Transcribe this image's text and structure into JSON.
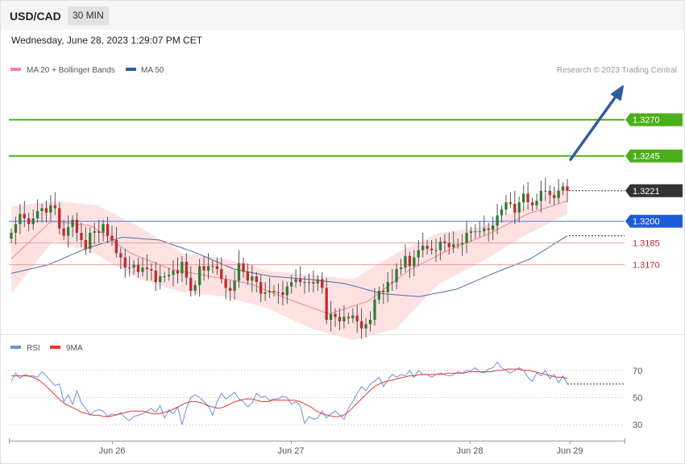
{
  "header": {
    "symbol": "USD/CAD",
    "timeframe": "30 MIN"
  },
  "timestamp": "Wednesday, June 28, 2023 1:29:07 PM CET",
  "credit": "Research © 2023 Trading Central",
  "colors": {
    "bull": "#2e7d32",
    "bear": "#c62828",
    "band": "#fdd8d8",
    "ma20": "#ef8a8a",
    "ma50": "#4a6fa5",
    "resistance": "#4caf1a",
    "pivot": "#1e5bd8",
    "support": "#ef9a9a",
    "last": "#333333",
    "arrow": "#2f5d9e",
    "rsi": "#6f8fe0",
    "rsi_ma": "#e53935"
  },
  "chart_data": [
    {
      "type": "candlestick",
      "legend": [
        {
          "name": "MA 20 + Bollinger Bands",
          "color": "#ef8a8a"
        },
        {
          "name": "MA 50",
          "color": "#2f5d9e"
        }
      ],
      "x_labels": [
        "Jun 26",
        "Jun 27",
        "Jun 28",
        "Jun 29"
      ],
      "ylim": [
        1.3122,
        1.3297
      ],
      "levels": [
        {
          "value": 1.327,
          "label": "1.3270",
          "kind": "resistance"
        },
        {
          "value": 1.3245,
          "label": "1.3245",
          "kind": "resistance"
        },
        {
          "value": 1.3221,
          "label": "1.3221",
          "kind": "last"
        },
        {
          "value": 1.32,
          "label": "1.3200",
          "kind": "pivot"
        },
        {
          "value": 1.3185,
          "label": "1.3185",
          "kind": "support"
        },
        {
          "value": 1.317,
          "label": "1.3170",
          "kind": "support"
        }
      ],
      "close": [
        1.3192,
        1.3198,
        1.3205,
        1.3202,
        1.3198,
        1.3202,
        1.3207,
        1.3209,
        1.3206,
        1.3211,
        1.3209,
        1.3195,
        1.319,
        1.3196,
        1.3201,
        1.3192,
        1.3187,
        1.3181,
        1.3192,
        1.3193,
        1.3192,
        1.3198,
        1.319,
        1.3187,
        1.3178,
        1.3175,
        1.3168,
        1.3168,
        1.317,
        1.3165,
        1.3168,
        1.3167,
        1.3166,
        1.3158,
        1.3162,
        1.3162,
        1.3163,
        1.3166,
        1.3164,
        1.3172,
        1.3161,
        1.3152,
        1.3156,
        1.3169,
        1.3166,
        1.3169,
        1.3169,
        1.3167,
        1.316,
        1.3154,
        1.3152,
        1.3159,
        1.3171,
        1.3165,
        1.3159,
        1.3162,
        1.3158,
        1.315,
        1.3151,
        1.3152,
        1.3151,
        1.3151,
        1.3149,
        1.3155,
        1.3158,
        1.316,
        1.3158,
        1.3158,
        1.3158,
        1.3157,
        1.316,
        1.3154,
        1.3132,
        1.3136,
        1.3134,
        1.3131,
        1.3134,
        1.3133,
        1.3135,
        1.3131,
        1.3126,
        1.3129,
        1.3132,
        1.3146,
        1.3152,
        1.3151,
        1.3158,
        1.3158,
        1.3167,
        1.3168,
        1.3176,
        1.3169,
        1.3175,
        1.318,
        1.3183,
        1.3181,
        1.318,
        1.318,
        1.3186,
        1.3185,
        1.3182,
        1.3184,
        1.3184,
        1.3185,
        1.3192,
        1.3193,
        1.3193,
        1.3193,
        1.3195,
        1.3194,
        1.3197,
        1.3204,
        1.3208,
        1.3213,
        1.3212,
        1.3206,
        1.3213,
        1.3219,
        1.3213,
        1.3211,
        1.3214,
        1.3221,
        1.3221,
        1.3218,
        1.3216,
        1.3221,
        1.3224,
        1.3221
      ],
      "series": [
        {
          "name": "MA 50",
          "anchors": [
            1.3164,
            1.317,
            1.3181,
            1.3189,
            1.3187,
            1.3178,
            1.3167,
            1.3162,
            1.316,
            1.3157,
            1.315,
            1.3148,
            1.3153,
            1.3164,
            1.3174,
            1.319
          ]
        },
        {
          "name": "MA 20",
          "anchors": [
            1.3174,
            1.32,
            1.3197,
            1.3178,
            1.3167,
            1.3162,
            1.3157,
            1.3146,
            1.3136,
            1.3145,
            1.3166,
            1.318,
            1.3191,
            1.3205,
            1.3214
          ]
        },
        {
          "name": "Bollinger Upper",
          "anchors": [
            1.321,
            1.3214,
            1.3211,
            1.3196,
            1.3178,
            1.3174,
            1.3166,
            1.3163,
            1.316,
            1.3178,
            1.3192,
            1.3196,
            1.321,
            1.3226
          ]
        },
        {
          "name": "Bollinger Lower",
          "anchors": [
            1.315,
            1.3187,
            1.3177,
            1.316,
            1.3151,
            1.3148,
            1.314,
            1.3126,
            1.3118,
            1.3126,
            1.3157,
            1.3172,
            1.319,
            1.3205
          ]
        }
      ]
    },
    {
      "type": "line",
      "legend": [
        {
          "name": "RSI",
          "color": "#6f8fe0"
        },
        {
          "name": "9MA",
          "color": "#e53935"
        }
      ],
      "y_ticks": [
        "70",
        "50",
        "30"
      ],
      "ylim": [
        20,
        80
      ],
      "series": [
        {
          "name": "RSI",
          "values": [
            62,
            68,
            64,
            67,
            66,
            66,
            65,
            69,
            66,
            62,
            59,
            60,
            47,
            52,
            45,
            55,
            46,
            42,
            37,
            40,
            41,
            40,
            36,
            38,
            37,
            39,
            35,
            33,
            36,
            37,
            38,
            40,
            42,
            39,
            44,
            35,
            41,
            38,
            43,
            30,
            42,
            50,
            52,
            50,
            47,
            44,
            37,
            47,
            53,
            49,
            51,
            54,
            49,
            47,
            43,
            46,
            53,
            50,
            51,
            48,
            49,
            49,
            51,
            50,
            45,
            47,
            44,
            31,
            36,
            34,
            35,
            40,
            35,
            38,
            40,
            37,
            34,
            42,
            47,
            53,
            58,
            55,
            60,
            62,
            65,
            58,
            63,
            67,
            65,
            67,
            66,
            70,
            65,
            70,
            67,
            67,
            65,
            67,
            68,
            67,
            66,
            67,
            69,
            68,
            70,
            70,
            72,
            69,
            68,
            71,
            72,
            76,
            72,
            70,
            68,
            70,
            72,
            70,
            65,
            62,
            68,
            66,
            70,
            64,
            67,
            61,
            66,
            60
          ]
        },
        {
          "name": "9MA",
          "values": [
            66,
            66,
            66,
            66,
            65,
            63,
            60,
            56,
            52,
            48,
            45,
            43,
            41,
            39,
            38,
            37,
            37,
            36,
            36,
            37,
            38,
            39,
            40,
            40,
            40,
            39,
            38,
            38,
            39,
            40,
            42,
            44,
            46,
            47,
            47,
            46,
            44,
            43,
            42,
            43,
            45,
            47,
            48,
            49,
            49,
            48,
            47,
            47,
            48,
            48,
            48,
            48,
            48,
            47,
            45,
            43,
            40,
            38,
            37,
            36,
            36,
            37,
            40,
            44,
            48,
            52,
            56,
            59,
            61,
            62,
            63,
            64,
            65,
            66,
            66,
            67,
            67,
            67,
            67,
            67,
            68,
            68,
            68,
            68,
            69,
            69,
            69,
            69,
            69,
            70,
            70,
            71,
            71,
            71,
            70,
            70,
            69,
            68,
            67,
            66,
            65,
            65,
            64
          ]
        }
      ]
    }
  ]
}
